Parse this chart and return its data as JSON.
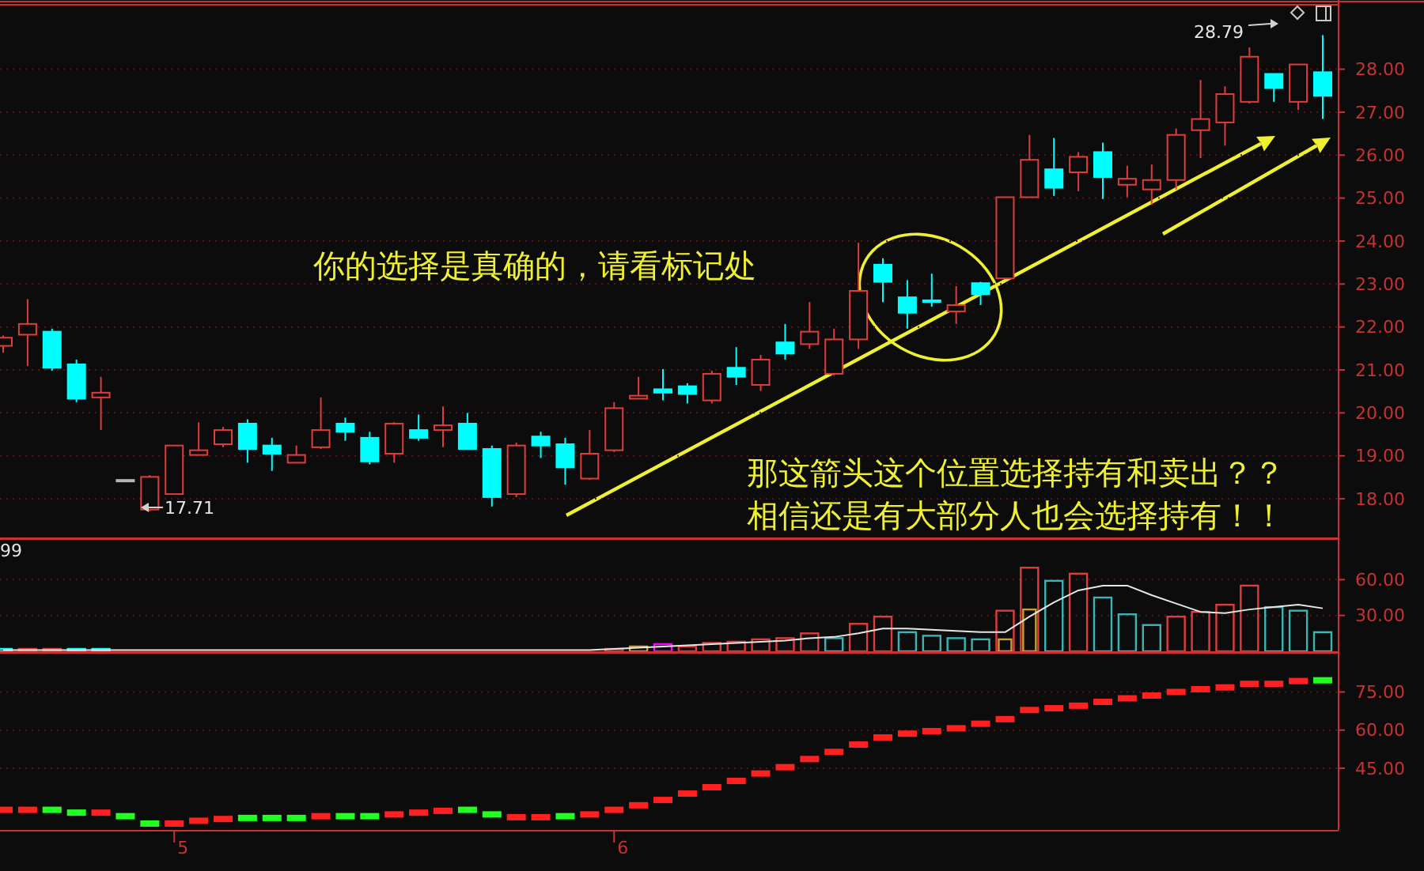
{
  "chart_data": [
    {
      "type": "candlestick",
      "categories": [
        null,
        null,
        null,
        null,
        null,
        null,
        null,
        null,
        null,
        null,
        null,
        null,
        null,
        null,
        null,
        null,
        null,
        null,
        null,
        null,
        null,
        null,
        null,
        null,
        null,
        null,
        null,
        null,
        null,
        null,
        null,
        null,
        null,
        null,
        null,
        null,
        null,
        null,
        null,
        null,
        null,
        null,
        null,
        null,
        null,
        null,
        null,
        null,
        null,
        null,
        null,
        null,
        null,
        null,
        null
      ],
      "ohlc": [
        [
          21.56,
          21.8,
          21.4,
          21.75
        ],
        [
          21.82,
          22.65,
          21.09,
          22.07
        ],
        [
          21.89,
          21.96,
          20.98,
          21.05
        ],
        [
          21.13,
          21.24,
          20.25,
          20.33
        ],
        [
          20.36,
          20.84,
          19.6,
          20.47
        ],
        [
          18.44,
          18.44,
          18.44,
          18.44
        ],
        [
          17.75,
          18.55,
          17.71,
          18.51
        ],
        [
          18.11,
          19.24,
          18.11,
          19.24
        ],
        [
          19.02,
          19.78,
          19.02,
          19.13
        ],
        [
          19.27,
          19.67,
          19.2,
          19.6
        ],
        [
          19.75,
          19.85,
          18.84,
          19.16
        ],
        [
          19.24,
          19.42,
          18.65,
          19.05
        ],
        [
          18.84,
          19.24,
          18.84,
          19.02
        ],
        [
          19.2,
          20.36,
          19.16,
          19.6
        ],
        [
          19.75,
          19.89,
          19.35,
          19.56
        ],
        [
          19.42,
          19.56,
          18.8,
          18.87
        ],
        [
          19.05,
          19.78,
          18.84,
          19.75
        ],
        [
          19.6,
          19.96,
          19.35,
          19.42
        ],
        [
          19.6,
          20.15,
          19.2,
          19.71
        ],
        [
          19.75,
          20.0,
          19.16,
          19.16
        ],
        [
          19.16,
          19.24,
          17.82,
          18.04
        ],
        [
          18.11,
          19.31,
          18.04,
          19.24
        ],
        [
          19.45,
          19.56,
          18.95,
          19.24
        ],
        [
          19.27,
          19.42,
          18.33,
          18.73
        ],
        [
          18.47,
          19.6,
          18.44,
          19.05
        ],
        [
          19.13,
          20.25,
          19.09,
          20.11
        ],
        [
          20.33,
          20.84,
          20.33,
          20.4
        ],
        [
          20.55,
          21.02,
          20.29,
          20.47
        ],
        [
          20.62,
          20.69,
          20.22,
          20.44
        ],
        [
          20.29,
          20.98,
          20.22,
          20.91
        ],
        [
          21.05,
          21.53,
          20.65,
          20.84
        ],
        [
          20.65,
          21.35,
          20.51,
          21.24
        ],
        [
          21.64,
          22.07,
          21.24,
          21.38
        ],
        [
          21.6,
          22.58,
          21.49,
          21.89
        ],
        [
          20.91,
          21.96,
          20.87,
          21.71
        ],
        [
          21.71,
          23.96,
          21.49,
          22.84
        ],
        [
          23.45,
          23.6,
          22.58,
          23.05
        ],
        [
          22.69,
          23.09,
          21.96,
          22.33
        ],
        [
          22.62,
          23.24,
          22.47,
          22.58
        ],
        [
          22.36,
          22.95,
          22.07,
          22.51
        ],
        [
          23.02,
          23.05,
          22.51,
          22.76
        ],
        [
          23.13,
          25.02,
          23.13,
          25.02
        ],
        [
          25.02,
          26.47,
          25.02,
          25.89
        ],
        [
          25.67,
          26.4,
          25.05,
          25.24
        ],
        [
          25.6,
          26.07,
          25.16,
          25.96
        ],
        [
          26.07,
          26.29,
          24.98,
          25.49
        ],
        [
          25.31,
          25.75,
          25.02,
          25.45
        ],
        [
          25.2,
          25.78,
          24.84,
          25.42
        ],
        [
          25.42,
          26.62,
          25.2,
          26.47
        ],
        [
          26.58,
          27.75,
          25.93,
          26.84
        ],
        [
          26.76,
          27.6,
          26.22,
          27.42
        ],
        [
          27.24,
          28.51,
          27.2,
          28.29
        ],
        [
          27.89,
          27.89,
          27.24,
          27.56
        ],
        [
          27.24,
          28.11,
          27.05,
          28.11
        ],
        [
          27.93,
          28.79,
          26.84,
          27.38
        ]
      ],
      "colors": [
        "#e03c3c",
        "#e03c3c",
        "#00ffff",
        "#00ffff",
        "#e03c3c",
        "#b4b4b4",
        "#e03c3c",
        "#e03c3c",
        "#e03c3c",
        "#e03c3c",
        "#00ffff",
        "#00ffff",
        "#e03c3c",
        "#e03c3c",
        "#00ffff",
        "#00ffff",
        "#e03c3c",
        "#00ffff",
        "#e03c3c",
        "#00ffff",
        "#00ffff",
        "#e03c3c",
        "#00ffff",
        "#00ffff",
        "#e03c3c",
        "#e03c3c",
        "#e03c3c",
        "#00ffff",
        "#00ffff",
        "#e03c3c",
        "#00ffff",
        "#e03c3c",
        "#00ffff",
        "#e03c3c",
        "#e03c3c",
        "#e03c3c",
        "#00ffff",
        "#00ffff",
        "#00ffff",
        "#e03c3c",
        "#00ffff",
        "#e03c3c",
        "#e03c3c",
        "#00ffff",
        "#e03c3c",
        "#00ffff",
        "#e03c3c",
        "#e03c3c",
        "#e03c3c",
        "#e03c3c",
        "#e03c3c",
        "#e03c3c",
        "#00ffff",
        "#e03c3c",
        "#00ffff"
      ],
      "ylim": [
        17.1,
        29.5
      ],
      "yticks": [
        {
          "value": 18,
          "label": "18.00"
        },
        {
          "value": 19,
          "label": "19.00"
        },
        {
          "value": 20,
          "label": "20.00"
        },
        {
          "value": 21,
          "label": "21.00"
        },
        {
          "value": 22,
          "label": "22.00"
        },
        {
          "value": 23,
          "label": "23.00"
        },
        {
          "value": 24,
          "label": "24.00"
        },
        {
          "value": 25,
          "label": "25.00"
        },
        {
          "value": 26,
          "label": "26.00"
        },
        {
          "value": 27,
          "label": "27.00"
        },
        {
          "value": 28,
          "label": "28.00"
        }
      ],
      "grid": "y",
      "tick_labels": "y",
      "annotations": [
        "你的选择是真确的，请看标记处",
        "那这箭头这个位置选择持有和卖出？？",
        "相信还是有大部分人也会选择持有！！",
        "17.71",
        "28.79"
      ]
    },
    {
      "type": "bar",
      "categories": [
        null,
        null,
        null,
        null,
        null,
        null,
        null,
        null,
        null,
        null,
        null,
        null,
        null,
        null,
        null,
        null,
        null,
        null,
        null,
        null,
        null,
        null,
        null,
        null,
        null,
        null,
        null,
        null,
        null,
        null,
        null,
        null,
        null,
        null,
        null,
        null,
        null,
        null,
        null,
        null,
        null,
        null,
        null,
        null,
        null,
        null,
        null,
        null,
        null,
        null,
        null,
        null,
        null,
        null,
        null
      ],
      "series": [
        {
          "values": [
            2,
            2,
            2,
            2,
            2,
            null,
            null,
            null,
            null,
            null,
            null,
            null,
            null,
            null,
            null,
            null,
            null,
            null,
            null,
            null,
            null,
            null,
            null,
            null,
            null,
            2,
            4,
            6,
            4,
            7,
            8,
            10,
            11,
            15,
            11,
            23,
            29,
            16,
            13,
            11,
            10,
            34,
            70,
            59,
            65,
            45,
            31,
            22,
            29,
            33,
            39,
            55,
            37,
            34,
            16
          ],
          "colors": [
            "#00ffff",
            "#e03c3c",
            "#e03c3c",
            "#00ffff",
            "#00ffff",
            null,
            null,
            null,
            null,
            null,
            null,
            null,
            null,
            null,
            null,
            null,
            null,
            null,
            null,
            null,
            null,
            null,
            null,
            null,
            null,
            "#e03c3c",
            "#c8a032",
            "#ff00ff",
            "#e03c3c",
            "#e03c3c",
            "#e03c3c",
            "#e03c3c",
            "#e03c3c",
            "#e03c3c",
            "#3cb4b4",
            "#e03c3c",
            "#e03c3c",
            "#3cb4b4",
            "#3cb4b4",
            "#3cb4b4",
            "#3cb4b4",
            "#e03c3c",
            "#e03c3c",
            "#3cb4b4",
            "#e03c3c",
            "#3cb4b4",
            "#3cb4b4",
            "#3cb4b4",
            "#e03c3c",
            "#e03c3c",
            "#e03c3c",
            "#e03c3c",
            "#3cb4b4",
            "#3cb4b4",
            "#3cb4b4"
          ]
        },
        {
          "color": "#c8a032",
          "values": [
            null,
            null,
            null,
            null,
            null,
            null,
            null,
            null,
            null,
            null,
            null,
            null,
            null,
            null,
            null,
            null,
            null,
            null,
            null,
            null,
            null,
            null,
            null,
            null,
            null,
            null,
            null,
            null,
            null,
            null,
            null,
            null,
            null,
            null,
            null,
            null,
            null,
            null,
            null,
            null,
            null,
            10,
            35,
            null,
            null,
            null,
            null,
            null,
            null,
            null,
            null,
            null,
            null,
            null,
            null
          ]
        },
        {
          "type": "line",
          "color": "#e6e6e6",
          "values": [
            1,
            1,
            1,
            1,
            1,
            1,
            1,
            1,
            1,
            1,
            1,
            1,
            1,
            1,
            1,
            1,
            1,
            1,
            1,
            1,
            1,
            1,
            1,
            1,
            1,
            2,
            3,
            4,
            5,
            6,
            7,
            8,
            9,
            11,
            12,
            15,
            19,
            19,
            18,
            17,
            16,
            16,
            29,
            41,
            51,
            55,
            55,
            47,
            40,
            33,
            32,
            35,
            37,
            39,
            36
          ]
        }
      ],
      "ylim": [
        0,
        94
      ],
      "yticks": [
        {
          "value": 30,
          "label": "30.00"
        },
        {
          "value": 60,
          "label": "60.00"
        }
      ],
      "grid": "y",
      "tick_labels": "y",
      "annotations": [
        "99"
      ]
    },
    {
      "type": "scatter",
      "categories": [
        null,
        null,
        null,
        null,
        null,
        null,
        null,
        "5",
        null,
        null,
        null,
        null,
        null,
        null,
        null,
        null,
        null,
        null,
        null,
        null,
        null,
        null,
        null,
        null,
        null,
        "6",
        null,
        null,
        null,
        null,
        null,
        null,
        null,
        null,
        null,
        null,
        null,
        null,
        null,
        null,
        null,
        null,
        null,
        null,
        null,
        null,
        null,
        null,
        null,
        null,
        null,
        null,
        null,
        null,
        null
      ],
      "values": [
        28.6,
        28.6,
        28.6,
        27.5,
        27.5,
        26.1,
        23.2,
        23.2,
        24.3,
        25.0,
        25.4,
        25.4,
        25.4,
        26.1,
        26.1,
        26.1,
        26.8,
        27.5,
        28.2,
        28.6,
        26.8,
        25.7,
        25.7,
        26.1,
        26.8,
        28.6,
        30.4,
        32.5,
        35.0,
        37.5,
        40.0,
        42.9,
        45.4,
        48.6,
        51.4,
        54.3,
        57.1,
        58.6,
        59.6,
        60.7,
        62.5,
        64.3,
        67.9,
        68.6,
        69.6,
        71.1,
        72.5,
        73.6,
        75.0,
        76.1,
        76.8,
        78.2,
        78.2,
        79.3,
        79.6
      ],
      "colors": [
        "#ff2020",
        "#ff2020",
        "#20ff20",
        "#20ff20",
        "#ff2020",
        "#20ff20",
        "#20ff20",
        "#ff2020",
        "#ff2020",
        "#ff2020",
        "#20ff20",
        "#20ff20",
        "#20ff20",
        "#ff2020",
        "#20ff20",
        "#20ff20",
        "#ff2020",
        "#ff2020",
        "#ff2020",
        "#20ff20",
        "#20ff20",
        "#ff2020",
        "#ff2020",
        "#20ff20",
        "#ff2020",
        "#ff2020",
        "#ff2020",
        "#ff2020",
        "#ff2020",
        "#ff2020",
        "#ff2020",
        "#ff2020",
        "#ff2020",
        "#ff2020",
        "#ff2020",
        "#ff2020",
        "#ff2020",
        "#ff2020",
        "#ff2020",
        "#ff2020",
        "#ff2020",
        "#ff2020",
        "#ff2020",
        "#ff2020",
        "#ff2020",
        "#ff2020",
        "#ff2020",
        "#ff2020",
        "#ff2020",
        "#ff2020",
        "#ff2020",
        "#ff2020",
        "#ff2020",
        "#ff2020",
        "#20ff20"
      ],
      "ylim": [
        20.7,
        90.4
      ],
      "yticks": [
        {
          "value": 45,
          "label": "45.00"
        },
        {
          "value": 60,
          "label": "60.00"
        },
        {
          "value": 75,
          "label": "75.00"
        }
      ],
      "grid": "y"
    }
  ]
}
